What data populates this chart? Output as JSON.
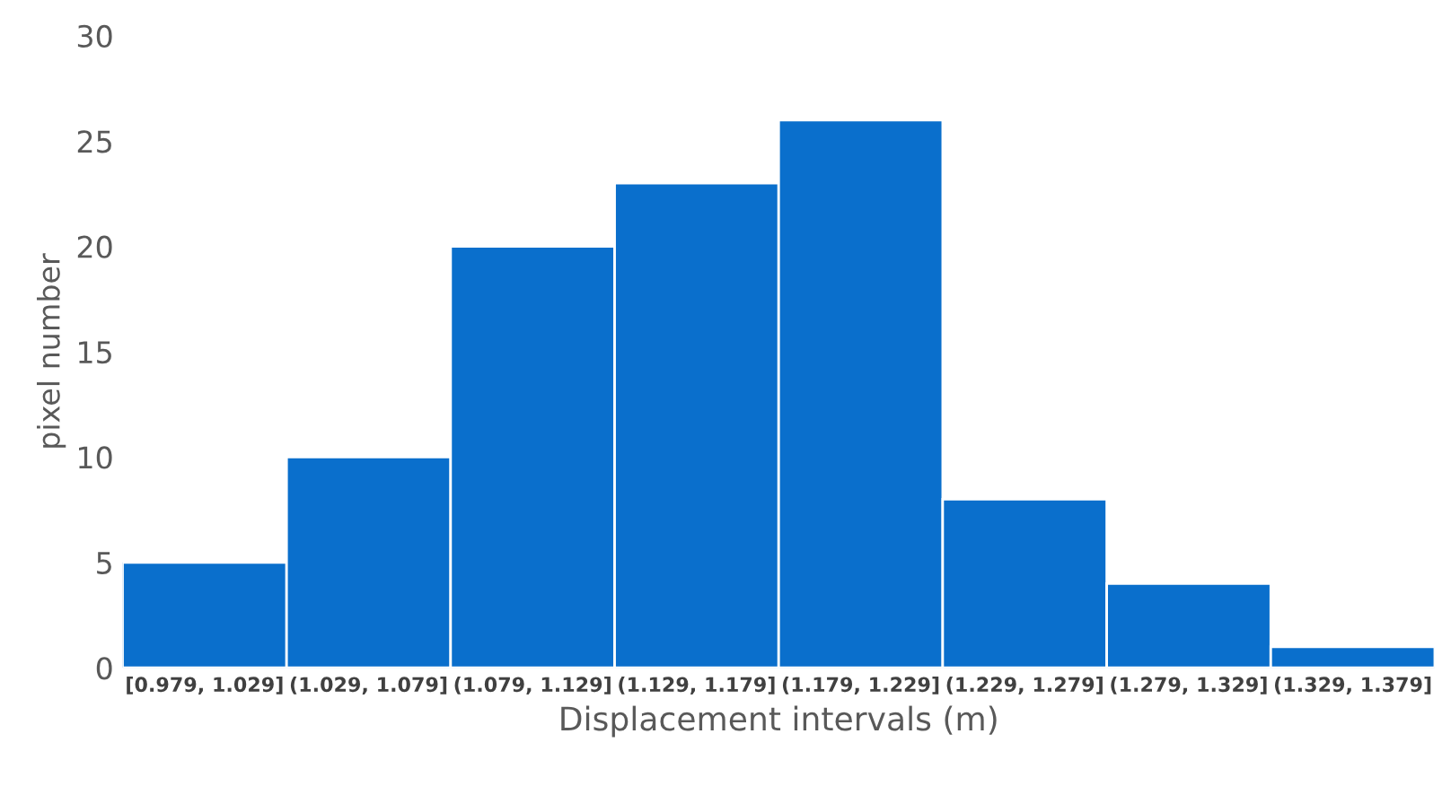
{
  "chart_data": {
    "type": "bar",
    "xlabel": "Displacement intervals (m)",
    "ylabel": "pixel number",
    "categories": [
      "[0.979, 1.029]",
      "(1.029, 1.079]",
      "(1.079, 1.129]",
      "(1.129, 1.179]",
      "(1.179, 1.229]",
      "(1.229, 1.279]",
      "(1.279, 1.329]",
      "(1.329, 1.379]"
    ],
    "values": [
      5,
      10,
      20,
      23,
      26,
      8,
      4,
      1
    ],
    "color": "#0a6fcc",
    "ylim": [
      0,
      30
    ],
    "yticks": [
      0,
      5,
      10,
      15,
      20,
      25,
      30
    ]
  }
}
